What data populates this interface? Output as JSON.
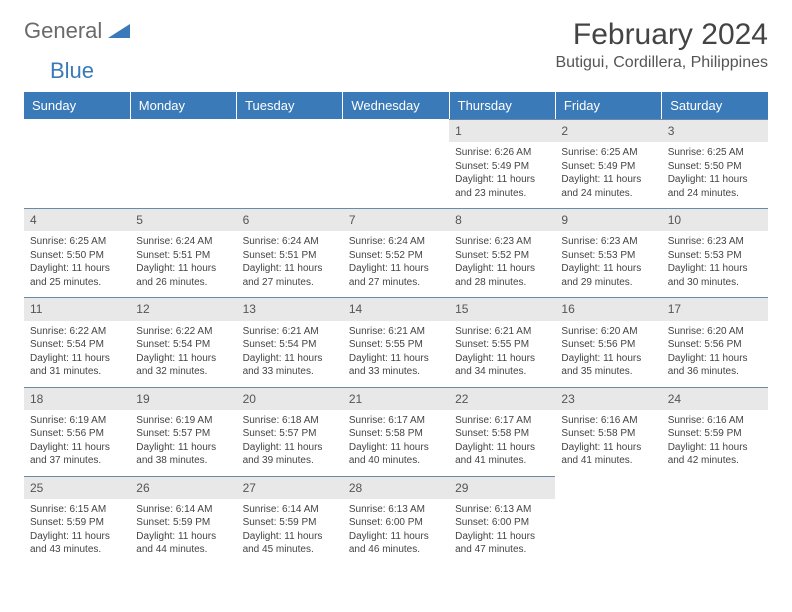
{
  "logo": {
    "word1": "General",
    "word2": "Blue",
    "color_gray": "#6a6a6a",
    "color_blue": "#3a7ab8"
  },
  "title": "February 2024",
  "location": "Butigui, Cordillera, Philippines",
  "header_bg": "#3a7ab8",
  "daynum_bg": "#e8e8e8",
  "border_color": "#6a8aa8",
  "weekdays": [
    "Sunday",
    "Monday",
    "Tuesday",
    "Wednesday",
    "Thursday",
    "Friday",
    "Saturday"
  ],
  "weeks": [
    [
      null,
      null,
      null,
      null,
      {
        "n": "1",
        "sr": "Sunrise: 6:26 AM",
        "ss": "Sunset: 5:49 PM",
        "d1": "Daylight: 11 hours",
        "d2": "and 23 minutes."
      },
      {
        "n": "2",
        "sr": "Sunrise: 6:25 AM",
        "ss": "Sunset: 5:49 PM",
        "d1": "Daylight: 11 hours",
        "d2": "and 24 minutes."
      },
      {
        "n": "3",
        "sr": "Sunrise: 6:25 AM",
        "ss": "Sunset: 5:50 PM",
        "d1": "Daylight: 11 hours",
        "d2": "and 24 minutes."
      }
    ],
    [
      {
        "n": "4",
        "sr": "Sunrise: 6:25 AM",
        "ss": "Sunset: 5:50 PM",
        "d1": "Daylight: 11 hours",
        "d2": "and 25 minutes."
      },
      {
        "n": "5",
        "sr": "Sunrise: 6:24 AM",
        "ss": "Sunset: 5:51 PM",
        "d1": "Daylight: 11 hours",
        "d2": "and 26 minutes."
      },
      {
        "n": "6",
        "sr": "Sunrise: 6:24 AM",
        "ss": "Sunset: 5:51 PM",
        "d1": "Daylight: 11 hours",
        "d2": "and 27 minutes."
      },
      {
        "n": "7",
        "sr": "Sunrise: 6:24 AM",
        "ss": "Sunset: 5:52 PM",
        "d1": "Daylight: 11 hours",
        "d2": "and 27 minutes."
      },
      {
        "n": "8",
        "sr": "Sunrise: 6:23 AM",
        "ss": "Sunset: 5:52 PM",
        "d1": "Daylight: 11 hours",
        "d2": "and 28 minutes."
      },
      {
        "n": "9",
        "sr": "Sunrise: 6:23 AM",
        "ss": "Sunset: 5:53 PM",
        "d1": "Daylight: 11 hours",
        "d2": "and 29 minutes."
      },
      {
        "n": "10",
        "sr": "Sunrise: 6:23 AM",
        "ss": "Sunset: 5:53 PM",
        "d1": "Daylight: 11 hours",
        "d2": "and 30 minutes."
      }
    ],
    [
      {
        "n": "11",
        "sr": "Sunrise: 6:22 AM",
        "ss": "Sunset: 5:54 PM",
        "d1": "Daylight: 11 hours",
        "d2": "and 31 minutes."
      },
      {
        "n": "12",
        "sr": "Sunrise: 6:22 AM",
        "ss": "Sunset: 5:54 PM",
        "d1": "Daylight: 11 hours",
        "d2": "and 32 minutes."
      },
      {
        "n": "13",
        "sr": "Sunrise: 6:21 AM",
        "ss": "Sunset: 5:54 PM",
        "d1": "Daylight: 11 hours",
        "d2": "and 33 minutes."
      },
      {
        "n": "14",
        "sr": "Sunrise: 6:21 AM",
        "ss": "Sunset: 5:55 PM",
        "d1": "Daylight: 11 hours",
        "d2": "and 33 minutes."
      },
      {
        "n": "15",
        "sr": "Sunrise: 6:21 AM",
        "ss": "Sunset: 5:55 PM",
        "d1": "Daylight: 11 hours",
        "d2": "and 34 minutes."
      },
      {
        "n": "16",
        "sr": "Sunrise: 6:20 AM",
        "ss": "Sunset: 5:56 PM",
        "d1": "Daylight: 11 hours",
        "d2": "and 35 minutes."
      },
      {
        "n": "17",
        "sr": "Sunrise: 6:20 AM",
        "ss": "Sunset: 5:56 PM",
        "d1": "Daylight: 11 hours",
        "d2": "and 36 minutes."
      }
    ],
    [
      {
        "n": "18",
        "sr": "Sunrise: 6:19 AM",
        "ss": "Sunset: 5:56 PM",
        "d1": "Daylight: 11 hours",
        "d2": "and 37 minutes."
      },
      {
        "n": "19",
        "sr": "Sunrise: 6:19 AM",
        "ss": "Sunset: 5:57 PM",
        "d1": "Daylight: 11 hours",
        "d2": "and 38 minutes."
      },
      {
        "n": "20",
        "sr": "Sunrise: 6:18 AM",
        "ss": "Sunset: 5:57 PM",
        "d1": "Daylight: 11 hours",
        "d2": "and 39 minutes."
      },
      {
        "n": "21",
        "sr": "Sunrise: 6:17 AM",
        "ss": "Sunset: 5:58 PM",
        "d1": "Daylight: 11 hours",
        "d2": "and 40 minutes."
      },
      {
        "n": "22",
        "sr": "Sunrise: 6:17 AM",
        "ss": "Sunset: 5:58 PM",
        "d1": "Daylight: 11 hours",
        "d2": "and 41 minutes."
      },
      {
        "n": "23",
        "sr": "Sunrise: 6:16 AM",
        "ss": "Sunset: 5:58 PM",
        "d1": "Daylight: 11 hours",
        "d2": "and 41 minutes."
      },
      {
        "n": "24",
        "sr": "Sunrise: 6:16 AM",
        "ss": "Sunset: 5:59 PM",
        "d1": "Daylight: 11 hours",
        "d2": "and 42 minutes."
      }
    ],
    [
      {
        "n": "25",
        "sr": "Sunrise: 6:15 AM",
        "ss": "Sunset: 5:59 PM",
        "d1": "Daylight: 11 hours",
        "d2": "and 43 minutes."
      },
      {
        "n": "26",
        "sr": "Sunrise: 6:14 AM",
        "ss": "Sunset: 5:59 PM",
        "d1": "Daylight: 11 hours",
        "d2": "and 44 minutes."
      },
      {
        "n": "27",
        "sr": "Sunrise: 6:14 AM",
        "ss": "Sunset: 5:59 PM",
        "d1": "Daylight: 11 hours",
        "d2": "and 45 minutes."
      },
      {
        "n": "28",
        "sr": "Sunrise: 6:13 AM",
        "ss": "Sunset: 6:00 PM",
        "d1": "Daylight: 11 hours",
        "d2": "and 46 minutes."
      },
      {
        "n": "29",
        "sr": "Sunrise: 6:13 AM",
        "ss": "Sunset: 6:00 PM",
        "d1": "Daylight: 11 hours",
        "d2": "and 47 minutes."
      },
      null,
      null
    ]
  ]
}
